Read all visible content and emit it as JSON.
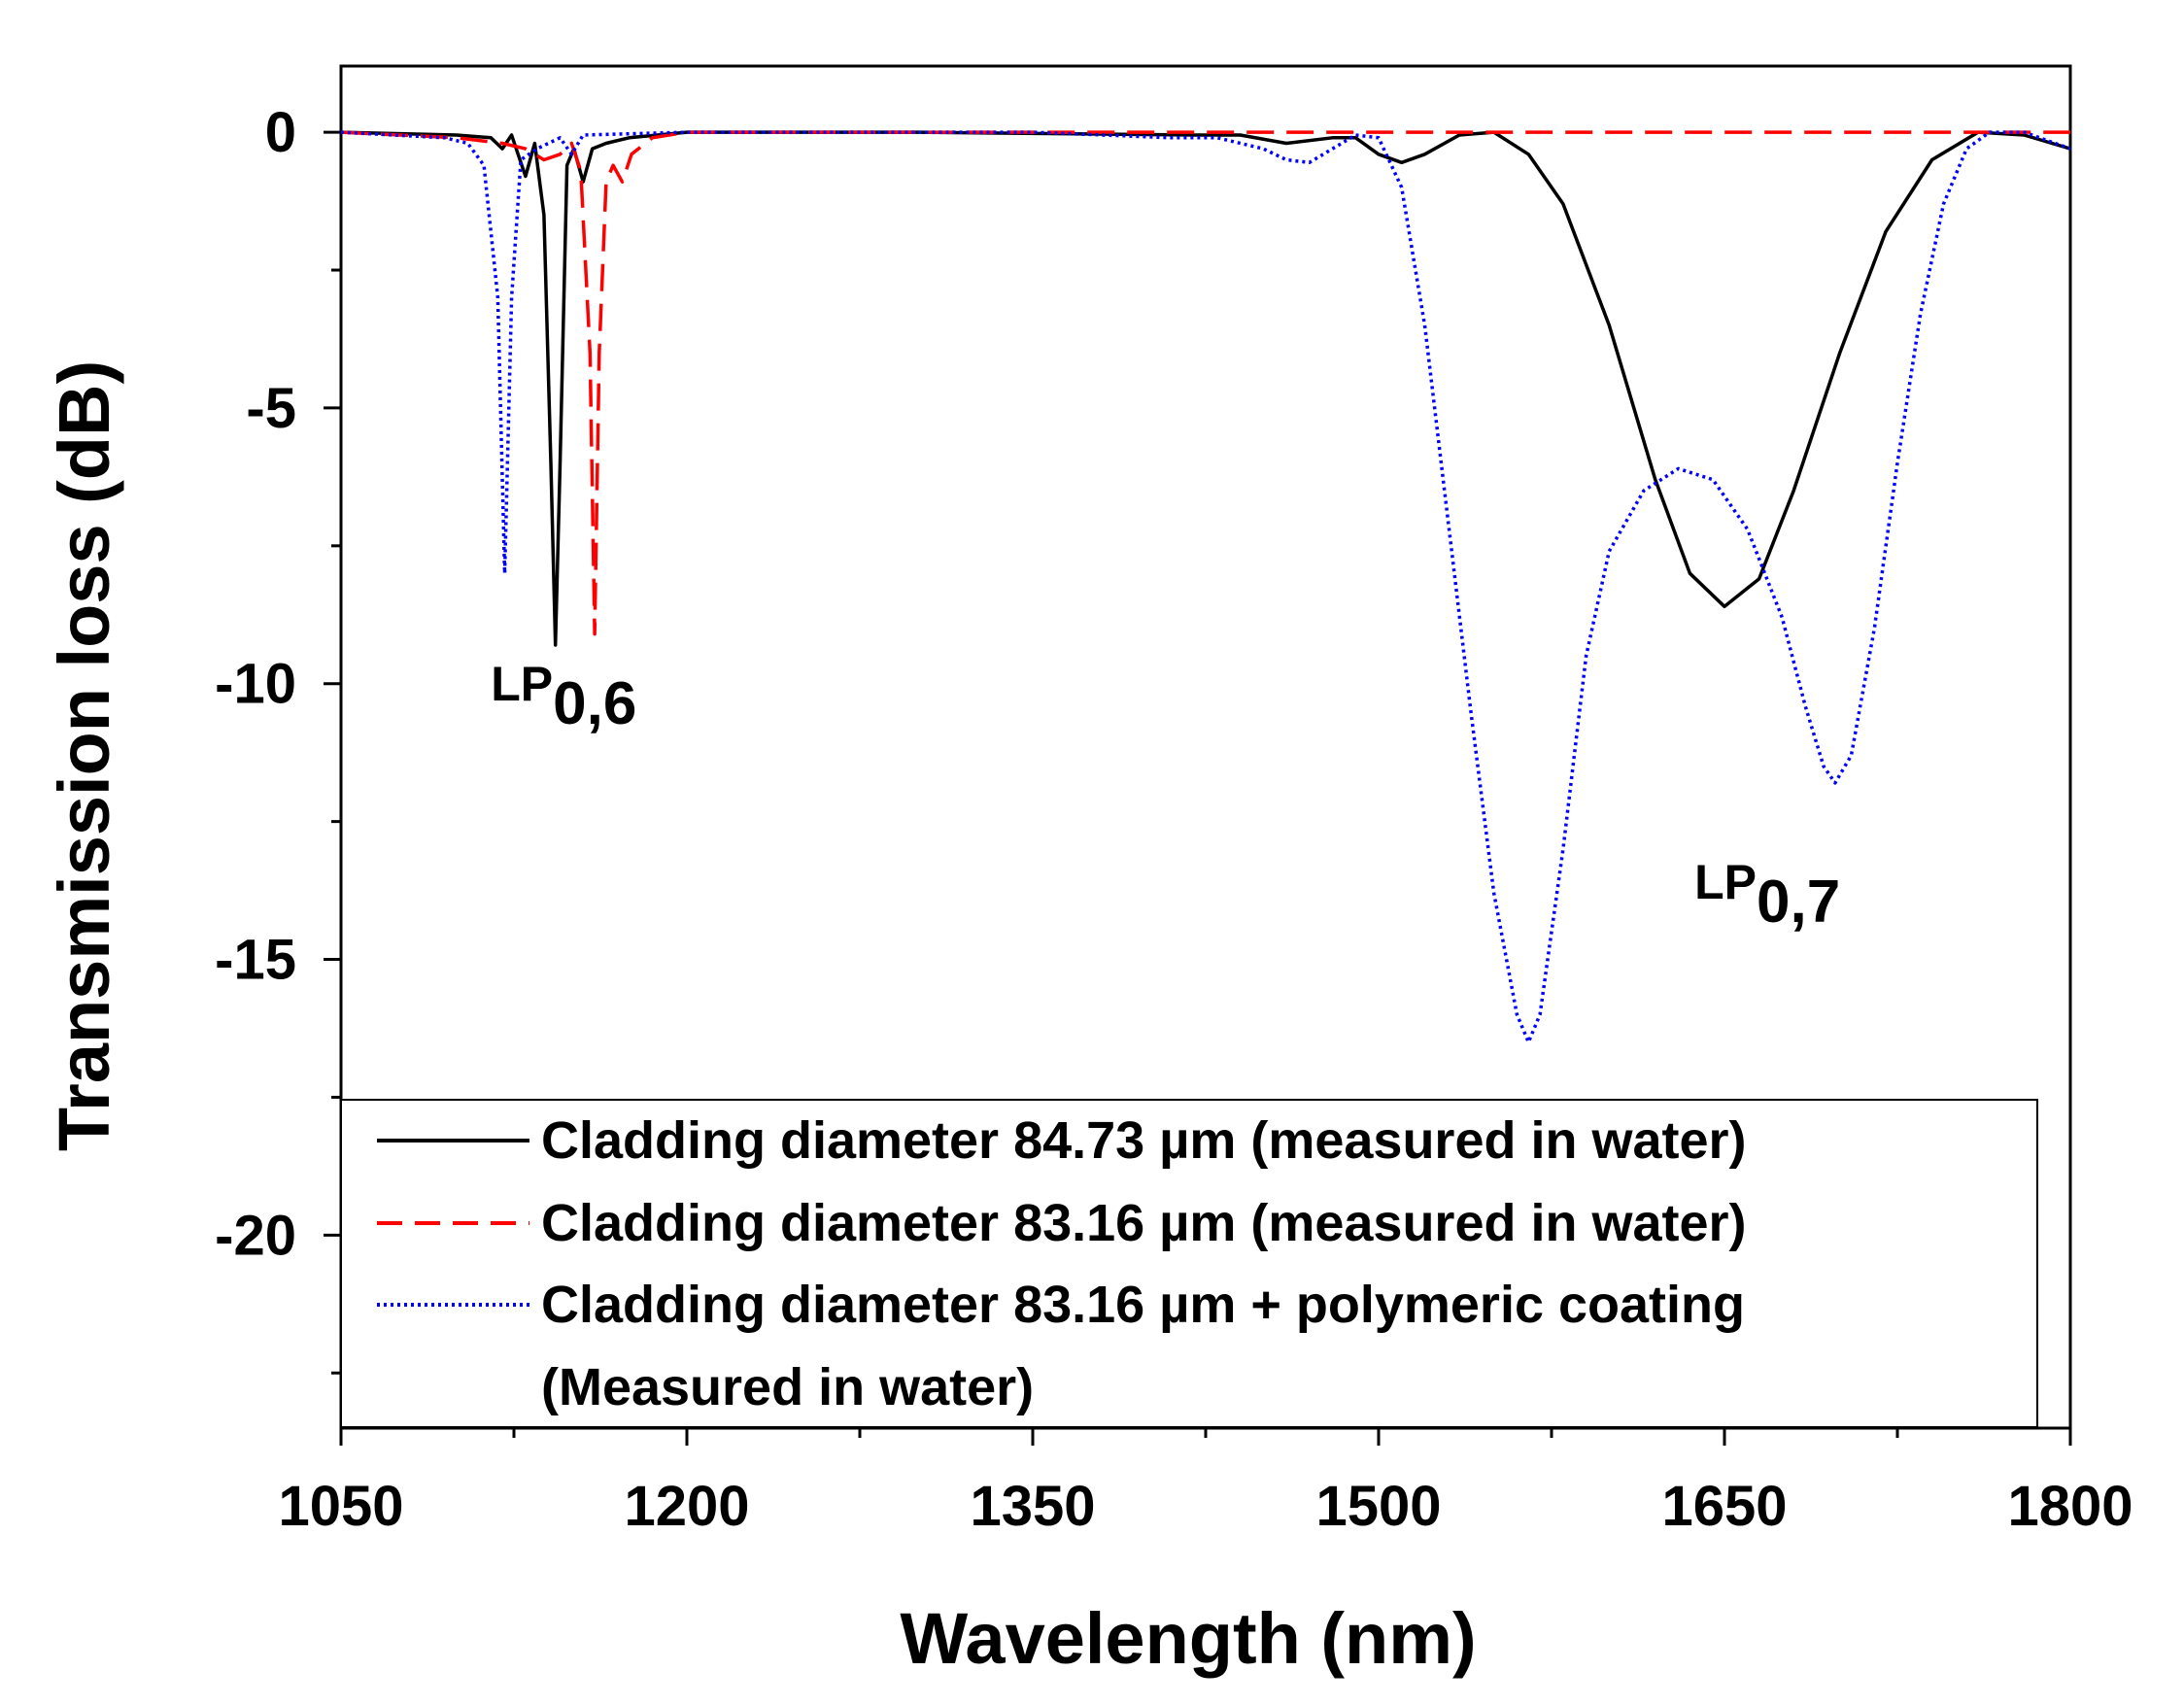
{
  "chart_data": {
    "type": "line",
    "title": "",
    "xlabel": "Wavelength (nm)",
    "ylabel": "Transmission loss (dB)",
    "xlim": [
      1050,
      1800
    ],
    "ylim": [
      -23.5,
      1.2
    ],
    "xticks": [
      1050,
      1200,
      1350,
      1500,
      1650,
      1800
    ],
    "xtick_labels": [
      "1050",
      "1200",
      "1350",
      "1500",
      "1650",
      "1800"
    ],
    "yticks": [
      0,
      -5,
      -10,
      -15,
      -20
    ],
    "ytick_labels": [
      "0",
      "-5",
      "-10",
      "-15",
      "-20"
    ],
    "grid": false,
    "legend_position": "bottom",
    "series": [
      {
        "name": "Cladding diameter 84.73 µm (measured in water)",
        "color": "#000000",
        "style": "solid",
        "points": [
          [
            1050,
            0
          ],
          [
            1100,
            -0.05
          ],
          [
            1115,
            -0.1
          ],
          [
            1120,
            -0.3
          ],
          [
            1124,
            -0.05
          ],
          [
            1130,
            -0.8
          ],
          [
            1134,
            -0.2
          ],
          [
            1138,
            -1.5
          ],
          [
            1141,
            -6
          ],
          [
            1143,
            -9.3
          ],
          [
            1145,
            -6
          ],
          [
            1148,
            -0.6
          ],
          [
            1151,
            -0.3
          ],
          [
            1155,
            -0.9
          ],
          [
            1159,
            -0.3
          ],
          [
            1165,
            -0.2
          ],
          [
            1175,
            -0.1
          ],
          [
            1200,
            0
          ],
          [
            1300,
            0
          ],
          [
            1420,
            -0.05
          ],
          [
            1440,
            -0.05
          ],
          [
            1460,
            -0.2
          ],
          [
            1480,
            -0.1
          ],
          [
            1490,
            -0.1
          ],
          [
            1500,
            -0.4
          ],
          [
            1510,
            -0.55
          ],
          [
            1520,
            -0.4
          ],
          [
            1535,
            -0.05
          ],
          [
            1550,
            0
          ],
          [
            1565,
            -0.4
          ],
          [
            1580,
            -1.3
          ],
          [
            1600,
            -3.5
          ],
          [
            1620,
            -6.3
          ],
          [
            1635,
            -8.0
          ],
          [
            1650,
            -8.6
          ],
          [
            1665,
            -8.1
          ],
          [
            1680,
            -6.5
          ],
          [
            1700,
            -4.0
          ],
          [
            1720,
            -1.8
          ],
          [
            1740,
            -0.5
          ],
          [
            1760,
            0
          ],
          [
            1780,
            -0.05
          ],
          [
            1800,
            -0.3
          ]
        ]
      },
      {
        "name": "Cladding diameter 83.16 µm (measured in water)",
        "color": "#ff0000",
        "style": "dashed",
        "points": [
          [
            1050,
            0
          ],
          [
            1100,
            -0.1
          ],
          [
            1120,
            -0.2
          ],
          [
            1130,
            -0.3
          ],
          [
            1138,
            -0.5
          ],
          [
            1145,
            -0.4
          ],
          [
            1150,
            -0.2
          ],
          [
            1154,
            -0.7
          ],
          [
            1158,
            -4
          ],
          [
            1160,
            -9.1
          ],
          [
            1162,
            -4
          ],
          [
            1165,
            -0.9
          ],
          [
            1168,
            -0.6
          ],
          [
            1172,
            -0.9
          ],
          [
            1176,
            -0.4
          ],
          [
            1185,
            -0.1
          ],
          [
            1200,
            0
          ],
          [
            1300,
            0
          ],
          [
            1800,
            0
          ]
        ]
      },
      {
        "name": "Cladding diameter 83.16 µm + polymeric coating",
        "name_line2": "(Measured in water)",
        "color": "#0000ff",
        "style": "dotted",
        "points": [
          [
            1050,
            0
          ],
          [
            1095,
            -0.1
          ],
          [
            1105,
            -0.2
          ],
          [
            1112,
            -0.6
          ],
          [
            1118,
            -3
          ],
          [
            1121,
            -8.0
          ],
          [
            1124,
            -3
          ],
          [
            1128,
            -0.5
          ],
          [
            1135,
            -0.3
          ],
          [
            1145,
            -0.1
          ],
          [
            1150,
            -0.4
          ],
          [
            1155,
            -0.05
          ],
          [
            1200,
            0
          ],
          [
            1350,
            0
          ],
          [
            1410,
            -0.1
          ],
          [
            1430,
            -0.1
          ],
          [
            1450,
            -0.3
          ],
          [
            1460,
            -0.5
          ],
          [
            1470,
            -0.55
          ],
          [
            1480,
            -0.3
          ],
          [
            1490,
            -0.05
          ],
          [
            1500,
            -0.1
          ],
          [
            1510,
            -1.0
          ],
          [
            1520,
            -3.5
          ],
          [
            1530,
            -7
          ],
          [
            1540,
            -10.5
          ],
          [
            1550,
            -13.8
          ],
          [
            1560,
            -16
          ],
          [
            1565,
            -16.5
          ],
          [
            1570,
            -16
          ],
          [
            1580,
            -13
          ],
          [
            1590,
            -9.5
          ],
          [
            1600,
            -7.6
          ],
          [
            1615,
            -6.5
          ],
          [
            1630,
            -6.1
          ],
          [
            1645,
            -6.3
          ],
          [
            1660,
            -7.2
          ],
          [
            1675,
            -8.8
          ],
          [
            1685,
            -10.4
          ],
          [
            1693,
            -11.5
          ],
          [
            1698,
            -11.8
          ],
          [
            1705,
            -11.3
          ],
          [
            1715,
            -9
          ],
          [
            1725,
            -6
          ],
          [
            1735,
            -3.3
          ],
          [
            1745,
            -1.3
          ],
          [
            1755,
            -0.3
          ],
          [
            1765,
            0
          ],
          [
            1780,
            0
          ],
          [
            1800,
            -0.3
          ]
        ]
      }
    ],
    "annotations": [
      {
        "main": "LP",
        "sub": "0,6",
        "x": 1115,
        "y": -10.3
      },
      {
        "main": "LP",
        "sub": "0,7",
        "x": 1637,
        "y": -13.9
      }
    ]
  }
}
